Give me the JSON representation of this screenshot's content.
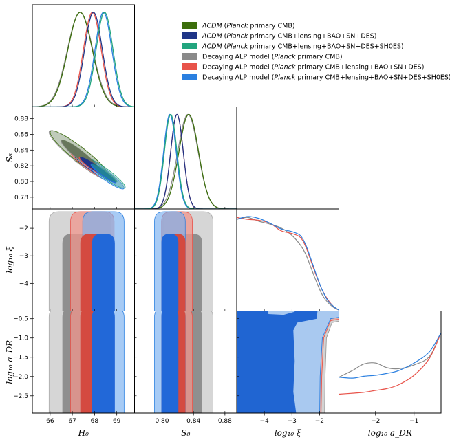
{
  "chart_data": {
    "type": "triangle",
    "parameters": [
      {
        "key": "H0",
        "label": "H₀",
        "range": [
          65.2,
          69.8
        ],
        "ticks": [
          66,
          67,
          68,
          69
        ],
        "tick_labels": [
          "66",
          "67",
          "68",
          "69"
        ]
      },
      {
        "key": "S8",
        "label": "S₈",
        "range": [
          0.765,
          0.895
        ],
        "ticks": [
          0.78,
          0.8,
          0.82,
          0.84,
          0.86,
          0.88
        ],
        "tick_labels_x": [
          "0.80",
          "0.84",
          "0.88"
        ],
        "tick_values_x": [
          0.8,
          0.84,
          0.88
        ],
        "tick_labels_y": [
          "0.78",
          "0.80",
          "0.82",
          "0.84",
          "0.86",
          "0.88"
        ]
      },
      {
        "key": "log10xi",
        "label": "log₁₀ ξ",
        "range": [
          -5.0,
          -1.3
        ],
        "tick_values_x": [
          -4,
          -3,
          -2
        ],
        "tick_labels_x": [
          "−4",
          "−3",
          "−2"
        ],
        "tick_values_y": [
          -2,
          -3,
          -4
        ],
        "tick_labels_y": [
          "−2",
          "−3",
          "−4"
        ]
      },
      {
        "key": "log10aDR",
        "label": "log₁₀ a_DR",
        "range": [
          -2.95,
          -0.3
        ],
        "tick_values_x": [
          -2,
          -1
        ],
        "tick_labels_x": [
          "−2",
          "−1"
        ],
        "tick_values_y": [
          -0.5,
          -1.0,
          -1.5,
          -2.0,
          -2.5
        ],
        "tick_labels_y": [
          "−0.5",
          "−1.0",
          "−1.5",
          "−2.0",
          "−2.5"
        ]
      }
    ],
    "axis_labels": {
      "x": [
        "H₀",
        "S₈",
        "log₁₀ ξ",
        "log₁₀ a_DR"
      ],
      "y": [
        "S₈",
        "log₁₀ ξ",
        "log₁₀ a_DR"
      ]
    },
    "series": [
      {
        "name": "ΛCDM (Planck primary CMB)",
        "color": "#3c6e0c",
        "model": "lcdm",
        "H0": {
          "mean": 67.35,
          "sigma": 0.55
        },
        "S8": {
          "mean": 0.834,
          "sigma": 0.0125
        },
        "corr_H0_S8": -0.93
      },
      {
        "name": "ΛCDM (Planck primary CMB+lensing+BAO+SN+DES)",
        "color": "#1f3587",
        "model": "lcdm",
        "H0": {
          "mean": 67.95,
          "sigma": 0.4
        },
        "S8": {
          "mean": 0.819,
          "sigma": 0.008
        }
      },
      {
        "name": "ΛCDM (Planck primary CMB+lensing+BAO+SN+DES+SH0ES)",
        "color": "#22a57e",
        "model": "lcdm",
        "H0": {
          "mean": 68.45,
          "sigma": 0.38
        },
        "S8": {
          "mean": 0.811,
          "sigma": 0.008
        }
      },
      {
        "name": "Decaying ALP model (Planck primary CMB)",
        "color": "#8a8a8a",
        "model": "alp",
        "H0": {
          "mean": 67.35,
          "sigma": 0.57
        },
        "S8": {
          "mean": 0.833,
          "sigma": 0.013
        },
        "log10xi_1d": [
          [
            -5.0,
            0.97
          ],
          [
            -4.6,
            0.99
          ],
          [
            -4.2,
            0.95
          ],
          [
            -3.8,
            0.92
          ],
          [
            -3.4,
            0.88
          ],
          [
            -3.0,
            0.8
          ],
          [
            -2.7,
            0.7
          ],
          [
            -2.5,
            0.6
          ],
          [
            -2.3,
            0.45
          ],
          [
            -2.1,
            0.3
          ],
          [
            -1.9,
            0.17
          ],
          [
            -1.7,
            0.09
          ],
          [
            -1.5,
            0.04
          ],
          [
            -1.3,
            0.01
          ]
        ],
        "log10aDR_1d": [
          [
            -2.95,
            0.38
          ],
          [
            -2.6,
            0.45
          ],
          [
            -2.3,
            0.52
          ],
          [
            -2.0,
            0.53
          ],
          [
            -1.7,
            0.48
          ],
          [
            -1.4,
            0.47
          ],
          [
            -1.0,
            0.51
          ],
          [
            -0.6,
            0.6
          ],
          [
            -0.3,
            0.85
          ]
        ]
      },
      {
        "name": "Decaying ALP model (Planck primary CMB+lensing+BAO+SN+DES)",
        "color": "#e8534a",
        "model": "alp",
        "H0": {
          "mean": 67.9,
          "sigma": 0.4
        },
        "S8": {
          "mean": 0.819,
          "sigma": 0.008
        },
        "log10xi_1d": [
          [
            -5.0,
            0.99
          ],
          [
            -4.6,
            0.97
          ],
          [
            -4.2,
            0.96
          ],
          [
            -3.8,
            0.93
          ],
          [
            -3.4,
            0.85
          ],
          [
            -3.0,
            0.82
          ],
          [
            -2.7,
            0.78
          ],
          [
            -2.5,
            0.68
          ],
          [
            -2.3,
            0.52
          ],
          [
            -2.1,
            0.36
          ],
          [
            -1.9,
            0.22
          ],
          [
            -1.7,
            0.12
          ],
          [
            -1.5,
            0.05
          ],
          [
            -1.3,
            0.01
          ]
        ],
        "log10aDR_1d": [
          [
            -2.95,
            0.2
          ],
          [
            -2.6,
            0.21
          ],
          [
            -2.3,
            0.22
          ],
          [
            -2.0,
            0.24
          ],
          [
            -1.7,
            0.26
          ],
          [
            -1.4,
            0.3
          ],
          [
            -1.0,
            0.4
          ],
          [
            -0.6,
            0.58
          ],
          [
            -0.3,
            0.85
          ]
        ]
      },
      {
        "name": "Decaying ALP model (Planck primary CMB+lensing+BAO+SN+DES+SH0ES)",
        "color": "#2a7fe0",
        "model": "alp",
        "H0": {
          "mean": 68.4,
          "sigma": 0.38
        },
        "S8": {
          "mean": 0.81,
          "sigma": 0.008
        },
        "log10xi_1d": [
          [
            -5.0,
            0.97
          ],
          [
            -4.6,
            1.0
          ],
          [
            -4.2,
            0.98
          ],
          [
            -3.8,
            0.93
          ],
          [
            -3.4,
            0.87
          ],
          [
            -3.0,
            0.84
          ],
          [
            -2.7,
            0.8
          ],
          [
            -2.5,
            0.7
          ],
          [
            -2.3,
            0.54
          ],
          [
            -2.1,
            0.37
          ],
          [
            -1.9,
            0.22
          ],
          [
            -1.7,
            0.11
          ],
          [
            -1.5,
            0.05
          ],
          [
            -1.3,
            0.01
          ]
        ],
        "log10aDR_1d": [
          [
            -2.95,
            0.38
          ],
          [
            -2.6,
            0.37
          ],
          [
            -2.3,
            0.39
          ],
          [
            -2.0,
            0.4
          ],
          [
            -1.7,
            0.42
          ],
          [
            -1.4,
            0.45
          ],
          [
            -1.0,
            0.53
          ],
          [
            -0.6,
            0.65
          ],
          [
            -0.3,
            0.85
          ]
        ]
      }
    ],
    "legend": {
      "placement": "top-right",
      "entries": [
        {
          "prefix": "ΛCDM",
          "prefix_italic": true,
          "open": " (",
          "italic_part": "Planck",
          "rest": " primary CMB)",
          "color": "#3c6e0c"
        },
        {
          "prefix": "ΛCDM",
          "prefix_italic": true,
          "open": " (",
          "italic_part": "Planck",
          "rest": " primary CMB+lensing+BAO+SN+DES)",
          "color": "#1f3587"
        },
        {
          "prefix": "ΛCDM",
          "prefix_italic": true,
          "open": " (",
          "italic_part": "Planck",
          "rest": " primary CMB+lensing+BAO+SN+DES+SH0ES)",
          "color": "#22a57e"
        },
        {
          "prefix": "Decaying ALP model",
          "prefix_italic": false,
          "open": " (",
          "italic_part": "Planck",
          "rest": " primary CMB)",
          "color": "#8a8a8a"
        },
        {
          "prefix": "Decaying ALP model",
          "prefix_italic": false,
          "open": " (",
          "italic_part": "Planck",
          "rest": " primary CMB+lensing+BAO+SN+DES)",
          "color": "#e8534a"
        },
        {
          "prefix": "Decaying ALP model",
          "prefix_italic": false,
          "open": " (",
          "italic_part": "Planck",
          "rest": " primary CMB+lensing+BAO+SN+DES+SH0ES)",
          "color": "#2a7fe0"
        }
      ]
    },
    "contour_levels": [
      "68%",
      "95%"
    ],
    "grid": false
  }
}
